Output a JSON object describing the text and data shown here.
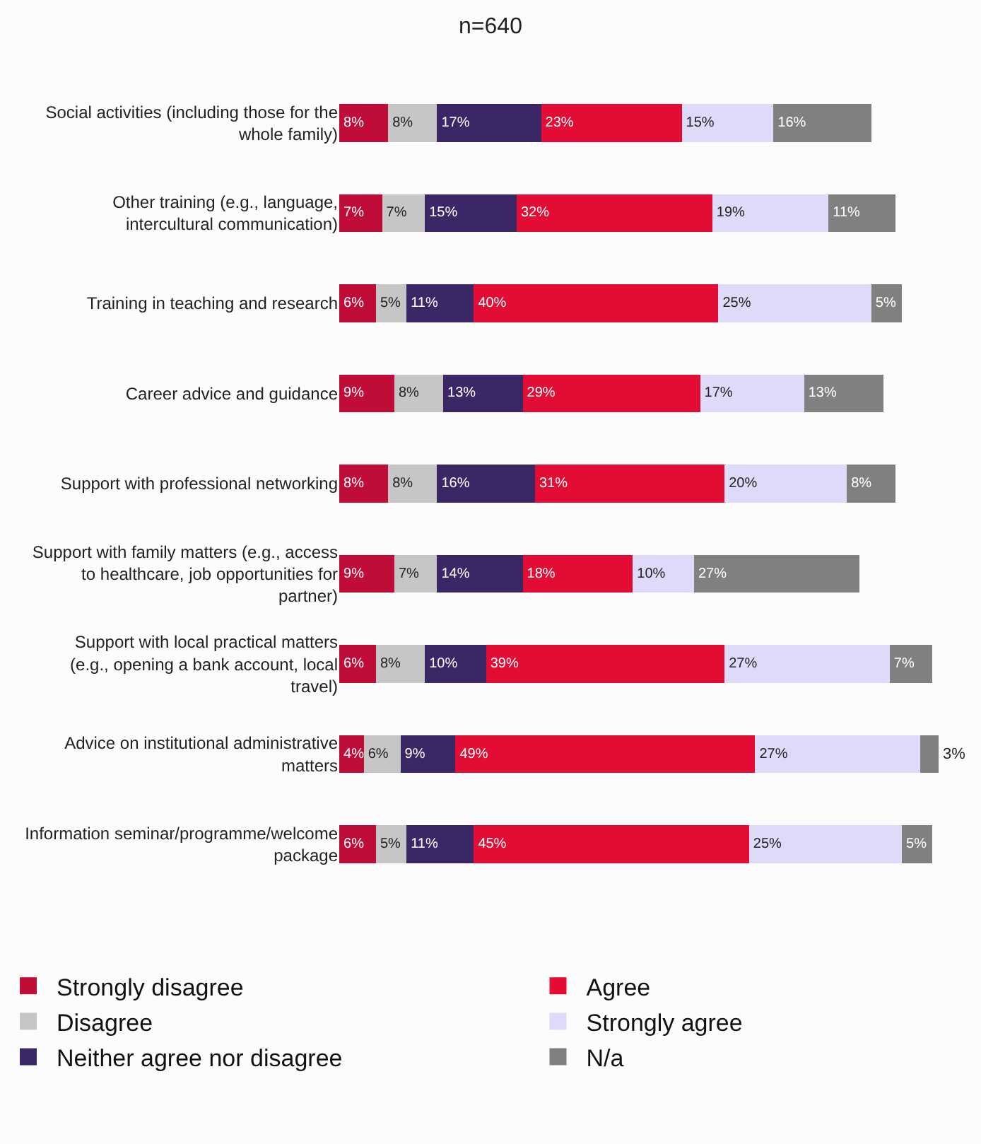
{
  "chart_data": {
    "type": "bar",
    "orientation": "horizontal",
    "stacked": true,
    "title": "n=640",
    "legend": "bottom",
    "tick_labels": "y",
    "categories": [
      "Social activities (including those for the whole family)",
      "Other training (e.g., language, intercultural communication)",
      "Training in teaching and research",
      "Career advice and guidance",
      "Support with professional networking",
      "Support with family matters (e.g., access to healthcare, job opportunities for partner)",
      "Support with local practical matters (e.g., opening a bank account, local travel)",
      "Advice on institutional administrative matters",
      "Information seminar/programme/welcome package"
    ],
    "series": [
      {
        "name": "Strongly disagree",
        "color": "#c00d37",
        "values": [
          8,
          7,
          6,
          9,
          8,
          9,
          6,
          4,
          6
        ],
        "value_labels": [
          "8%",
          "7%",
          "6%",
          "9%",
          "8%",
          "9%",
          "6%",
          "4%",
          "6%"
        ]
      },
      {
        "name": "Disagree",
        "color": "#c6c6c6",
        "values": [
          8,
          7,
          5,
          8,
          8,
          7,
          8,
          6,
          5
        ],
        "value_labels": [
          "8%",
          "7%",
          "5%",
          "8%",
          "8%",
          "7%",
          "8%",
          "6%",
          "5%"
        ]
      },
      {
        "name": "Neither agree nor disagree",
        "color": "#3b2766",
        "values": [
          17,
          15,
          11,
          13,
          16,
          14,
          10,
          9,
          11
        ],
        "value_labels": [
          "17%",
          "15%",
          "11%",
          "13%",
          "16%",
          "14%",
          "10%",
          "9%",
          "11%"
        ]
      },
      {
        "name": "Agree",
        "color": "#e30c35",
        "values": [
          23,
          32,
          40,
          29,
          31,
          18,
          39,
          49,
          45
        ],
        "value_labels": [
          "23%",
          "32%",
          "40%",
          "29%",
          "31%",
          "18%",
          "39%",
          "49%",
          "45%"
        ]
      },
      {
        "name": "Strongly agree",
        "color": "#dedaf9",
        "values": [
          15,
          19,
          25,
          17,
          20,
          10,
          27,
          27,
          25
        ],
        "value_labels": [
          "15%",
          "19%",
          "25%",
          "17%",
          "20%",
          "10%",
          "27%",
          "27%",
          "25%"
        ]
      },
      {
        "name": "N/a",
        "color": "#808080",
        "values": [
          16,
          11,
          5,
          13,
          8,
          27,
          7,
          3,
          5
        ],
        "value_labels": [
          "16%",
          "11%",
          "5%",
          "13%",
          "8%",
          "27%",
          "7%",
          "3%",
          "5%"
        ]
      }
    ]
  }
}
